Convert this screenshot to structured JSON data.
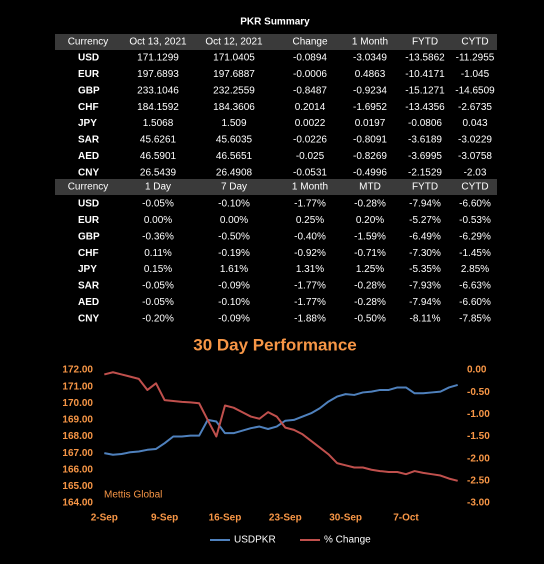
{
  "page_title": "PKR Summary",
  "table1": {
    "headers": [
      "Currency",
      "Oct 13, 2021",
      "Oct 12, 2021",
      "Change",
      "1 Month",
      "FYTD",
      "CYTD"
    ],
    "rows": [
      [
        "USD",
        "171.1299",
        "171.0405",
        "-0.0894",
        "-3.0349",
        "-13.5862",
        "-11.2955"
      ],
      [
        "EUR",
        "197.6893",
        "197.6887",
        "-0.0006",
        "0.4863",
        "-10.4171",
        "-1.045"
      ],
      [
        "GBP",
        "233.1046",
        "232.2559",
        "-0.8487",
        "-0.9234",
        "-15.1271",
        "-14.6509"
      ],
      [
        "CHF",
        "184.1592",
        "184.3606",
        "0.2014",
        "-1.6952",
        "-13.4356",
        "-2.6735"
      ],
      [
        "JPY",
        "1.5068",
        "1.509",
        "0.0022",
        "0.0197",
        "-0.0806",
        "0.043"
      ],
      [
        "SAR",
        "45.6261",
        "45.6035",
        "-0.0226",
        "-0.8091",
        "-3.6189",
        "-3.0229"
      ],
      [
        "AED",
        "46.5901",
        "46.5651",
        "-0.025",
        "-0.8269",
        "-3.6995",
        "-3.0758"
      ],
      [
        "CNY",
        "26.5439",
        "26.4908",
        "-0.0531",
        "-0.4996",
        "-2.1529",
        "-2.03"
      ]
    ]
  },
  "table2": {
    "headers": [
      "Currency",
      "1 Day",
      "7 Day",
      "1 Month",
      "MTD",
      "FYTD",
      "CYTD"
    ],
    "rows": [
      [
        "USD",
        "-0.05%",
        "-0.10%",
        "-1.77%",
        "-0.28%",
        "-7.94%",
        "-6.60%"
      ],
      [
        "EUR",
        "0.00%",
        "0.00%",
        "0.25%",
        "0.20%",
        "-5.27%",
        "-0.53%"
      ],
      [
        "GBP",
        "-0.36%",
        "-0.50%",
        "-0.40%",
        "-1.59%",
        "-6.49%",
        "-6.29%"
      ],
      [
        "CHF",
        "0.11%",
        "-0.19%",
        "-0.92%",
        "-0.71%",
        "-7.30%",
        "-1.45%"
      ],
      [
        "JPY",
        "0.15%",
        "1.61%",
        "1.31%",
        "1.25%",
        "-5.35%",
        "2.85%"
      ],
      [
        "SAR",
        "-0.05%",
        "-0.09%",
        "-1.77%",
        "-0.28%",
        "-7.93%",
        "-6.63%"
      ],
      [
        "AED",
        "-0.05%",
        "-0.10%",
        "-1.77%",
        "-0.28%",
        "-7.94%",
        "-6.60%"
      ],
      [
        "CNY",
        "-0.20%",
        "-0.09%",
        "-1.88%",
        "-0.50%",
        "-8.11%",
        "-7.85%"
      ]
    ]
  },
  "chart_data": {
    "type": "line",
    "title": "30 Day Performance",
    "annotation": "Mettis Global",
    "categories": [
      "2-Sep",
      null,
      null,
      null,
      null,
      null,
      null,
      "9-Sep",
      null,
      null,
      null,
      null,
      null,
      null,
      "16-Sep",
      null,
      null,
      null,
      null,
      null,
      null,
      "23-Sep",
      null,
      null,
      null,
      null,
      null,
      null,
      "30-Sep",
      null,
      null,
      null,
      null,
      null,
      null,
      "7-Oct",
      null,
      null,
      null,
      null,
      null,
      null
    ],
    "series": [
      {
        "name": "USDPKR",
        "color": "#4f81bd",
        "values": [
          167.0,
          166.9,
          166.95,
          167.05,
          167.1,
          167.2,
          167.25,
          167.6,
          168.0,
          168.0,
          168.05,
          168.05,
          169.0,
          168.9,
          168.2,
          168.2,
          168.35,
          168.5,
          168.6,
          168.45,
          168.6,
          168.95,
          169.0,
          169.2,
          169.4,
          169.7,
          170.1,
          170.4,
          170.55,
          170.5,
          170.65,
          170.7,
          170.8,
          170.8,
          170.95,
          170.95,
          170.6,
          170.6,
          170.65,
          170.7,
          170.95,
          171.1
        ]
      },
      {
        "name": "% Change",
        "color": "#c0504d",
        "axis": "y2",
        "values": [
          -0.1,
          -0.05,
          -0.1,
          -0.15,
          -0.2,
          -0.45,
          -0.3,
          -0.68,
          -0.7,
          -0.72,
          -0.73,
          -0.75,
          -1.13,
          -1.5,
          -0.8,
          -0.85,
          -0.95,
          -1.05,
          -1.1,
          -0.95,
          -1.05,
          -1.3,
          -1.35,
          -1.45,
          -1.6,
          -1.75,
          -1.9,
          -2.1,
          -2.15,
          -2.2,
          -2.2,
          -2.25,
          -2.28,
          -2.3,
          -2.3,
          -2.35,
          -2.28,
          -2.32,
          -2.35,
          -2.38,
          -2.45,
          -2.5
        ]
      }
    ],
    "ylim": [
      164,
      172
    ],
    "yticks": [
      {
        "value": 164,
        "label": "164.00"
      },
      {
        "value": 165,
        "label": "165.00"
      },
      {
        "value": 166,
        "label": "166.00"
      },
      {
        "value": 167,
        "label": "167.00"
      },
      {
        "value": 168,
        "label": "168.00"
      },
      {
        "value": 169,
        "label": "169.00"
      },
      {
        "value": 170,
        "label": "170.00"
      },
      {
        "value": 171,
        "label": "171.00"
      },
      {
        "value": 172,
        "label": "172.00"
      }
    ],
    "y2lim": [
      -3,
      0
    ],
    "y2ticks": [
      {
        "value": 0,
        "label": "0.00"
      },
      {
        "value": -0.5,
        "label": "-0.50"
      },
      {
        "value": -1,
        "label": "-1.00"
      },
      {
        "value": -1.5,
        "label": "-1.50"
      },
      {
        "value": -2,
        "label": "-2.00"
      },
      {
        "value": -2.5,
        "label": "-2.50"
      },
      {
        "value": -3,
        "label": "-3.00"
      }
    ],
    "legend": "bottom",
    "grid": false
  }
}
